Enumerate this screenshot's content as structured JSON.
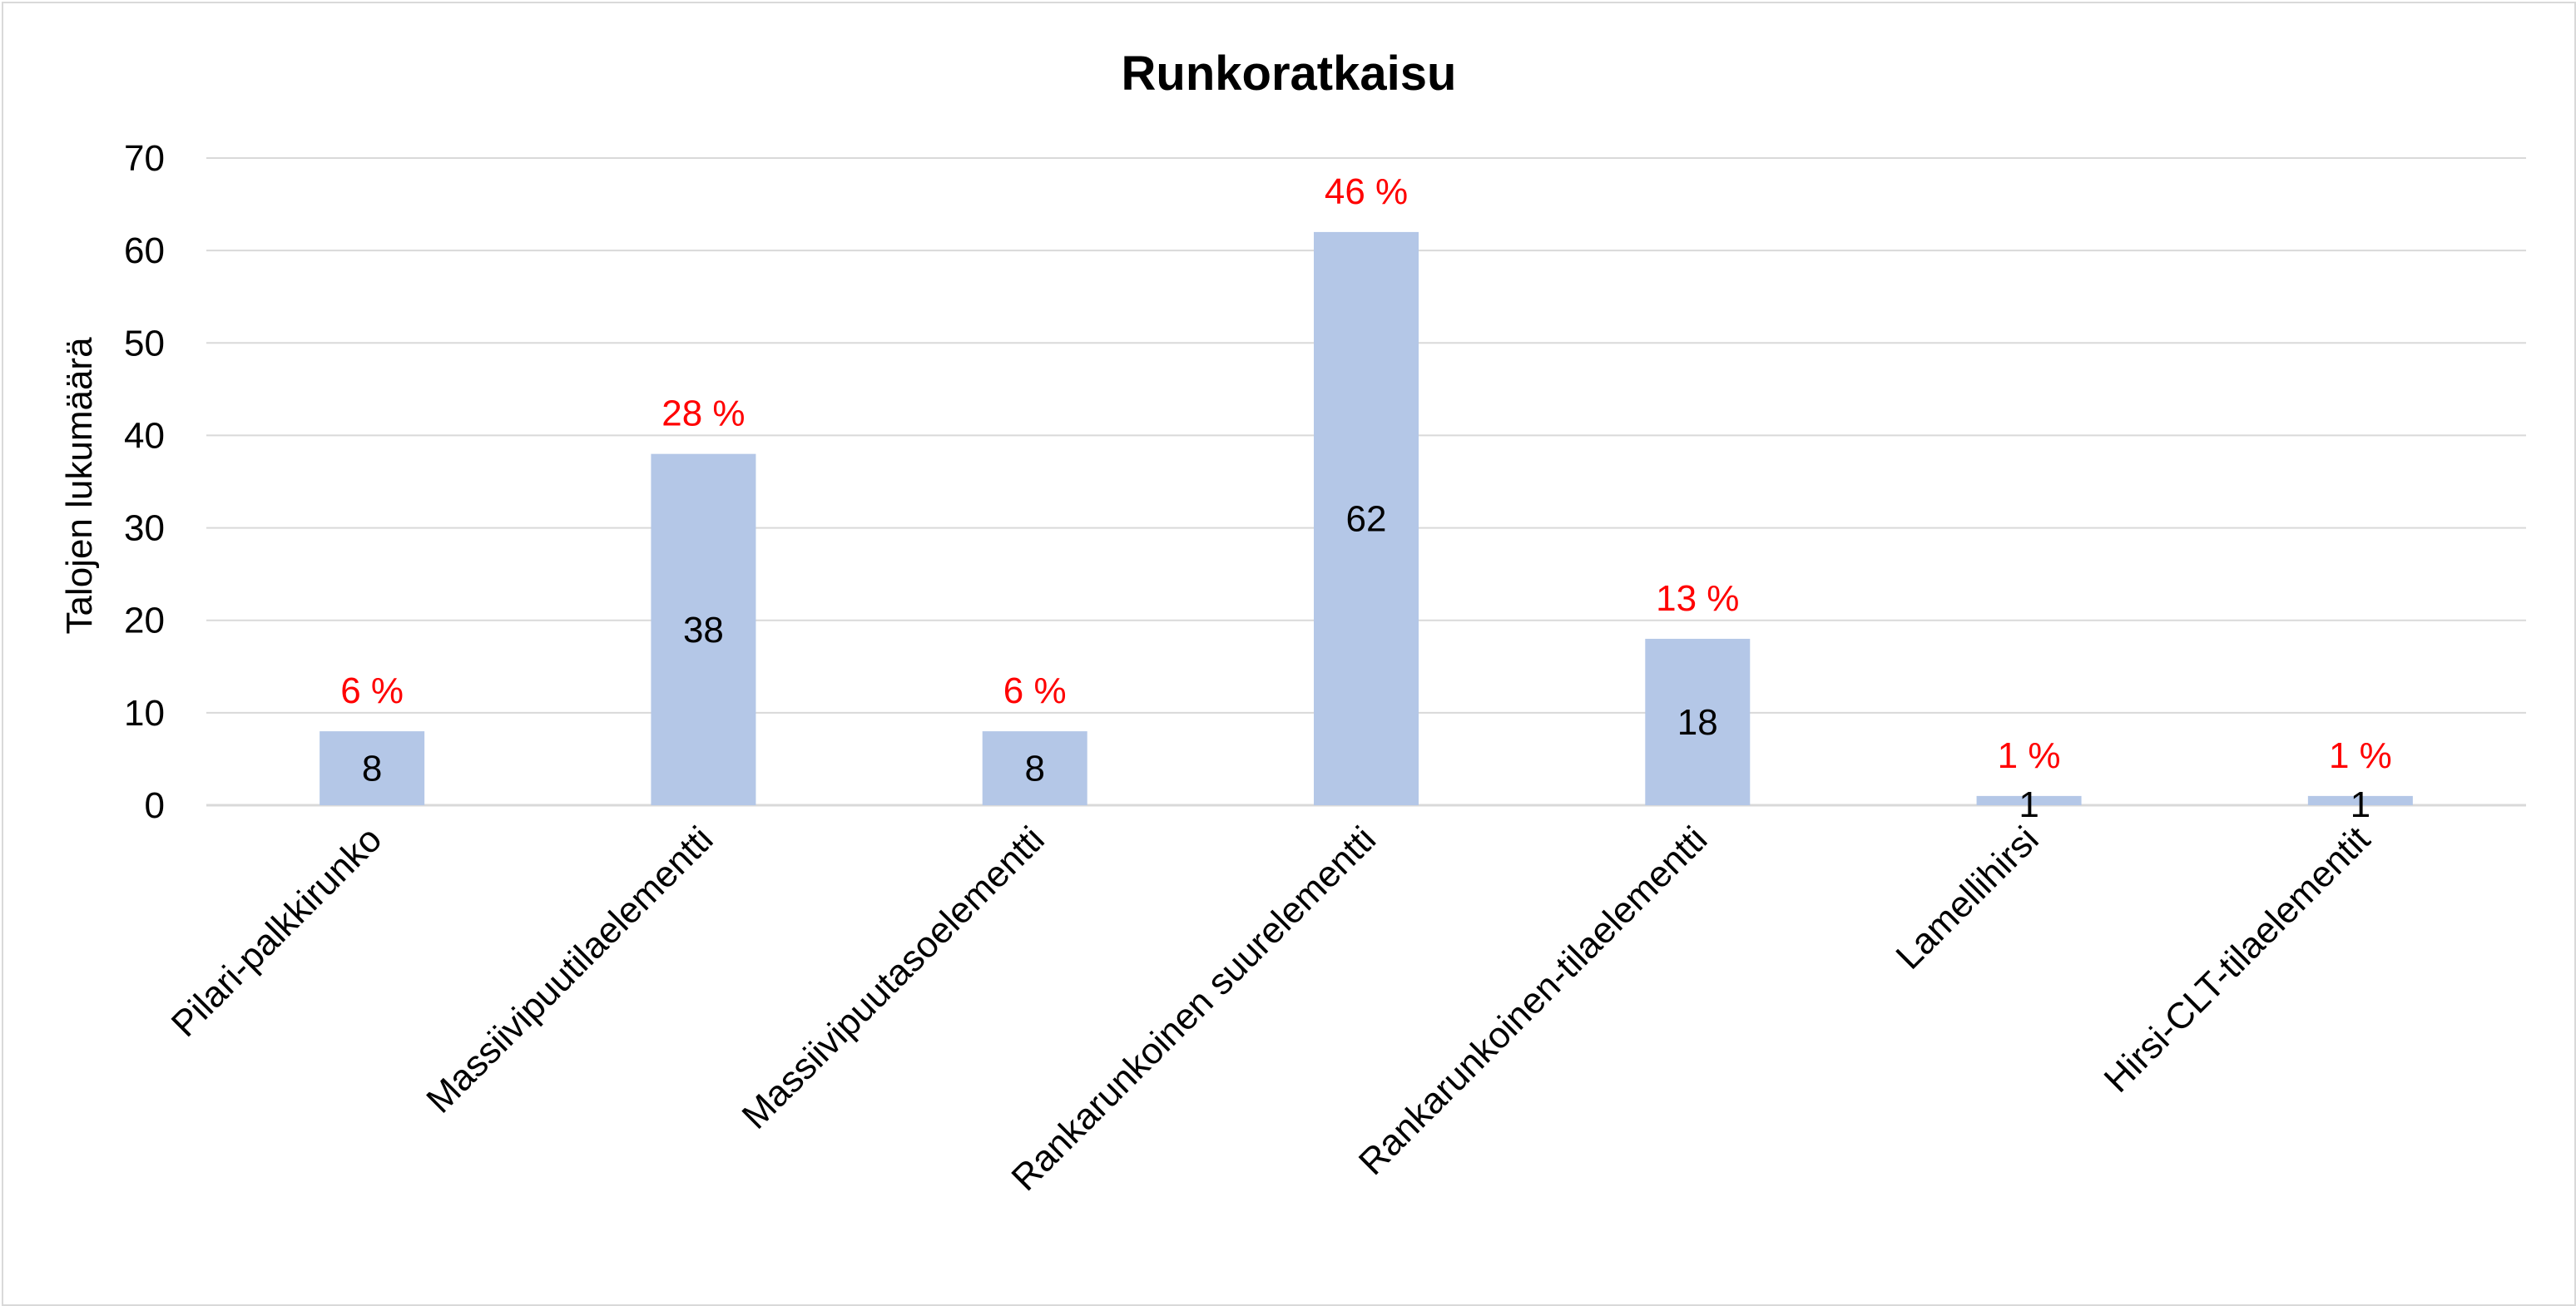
{
  "chart_data": {
    "type": "bar",
    "title": "Runkoratkaisu",
    "xlabel": "",
    "ylabel": "Talojen lukumäärä",
    "ylim": [
      0,
      70
    ],
    "yticks": [
      0,
      10,
      20,
      30,
      40,
      50,
      60,
      70
    ],
    "grid": true,
    "legend": "none",
    "categories": [
      "Pilari-palkkirunko",
      "Massiivipuutilaelementti",
      "Massiivipuutasoelementti",
      "Rankarunkoinen suurelementti",
      "Rankarunkoinen-tilaelementti",
      "Lamellihirsi",
      "Hirsi-CLT-tilaelementit"
    ],
    "values": [
      8,
      38,
      8,
      62,
      18,
      1,
      1
    ],
    "value_labels": [
      "8",
      "38",
      "8",
      "62",
      "18",
      "1",
      "1"
    ],
    "percent_labels": [
      "6 %",
      "28 %",
      "6 %",
      "46 %",
      "13 %",
      "1 %",
      "1 %"
    ],
    "colors": {
      "bar": "#b4c7e7",
      "percent": "#ff0000",
      "grid": "#d9d9d9",
      "axis": "#d9d9d9",
      "text": "#000000"
    }
  }
}
